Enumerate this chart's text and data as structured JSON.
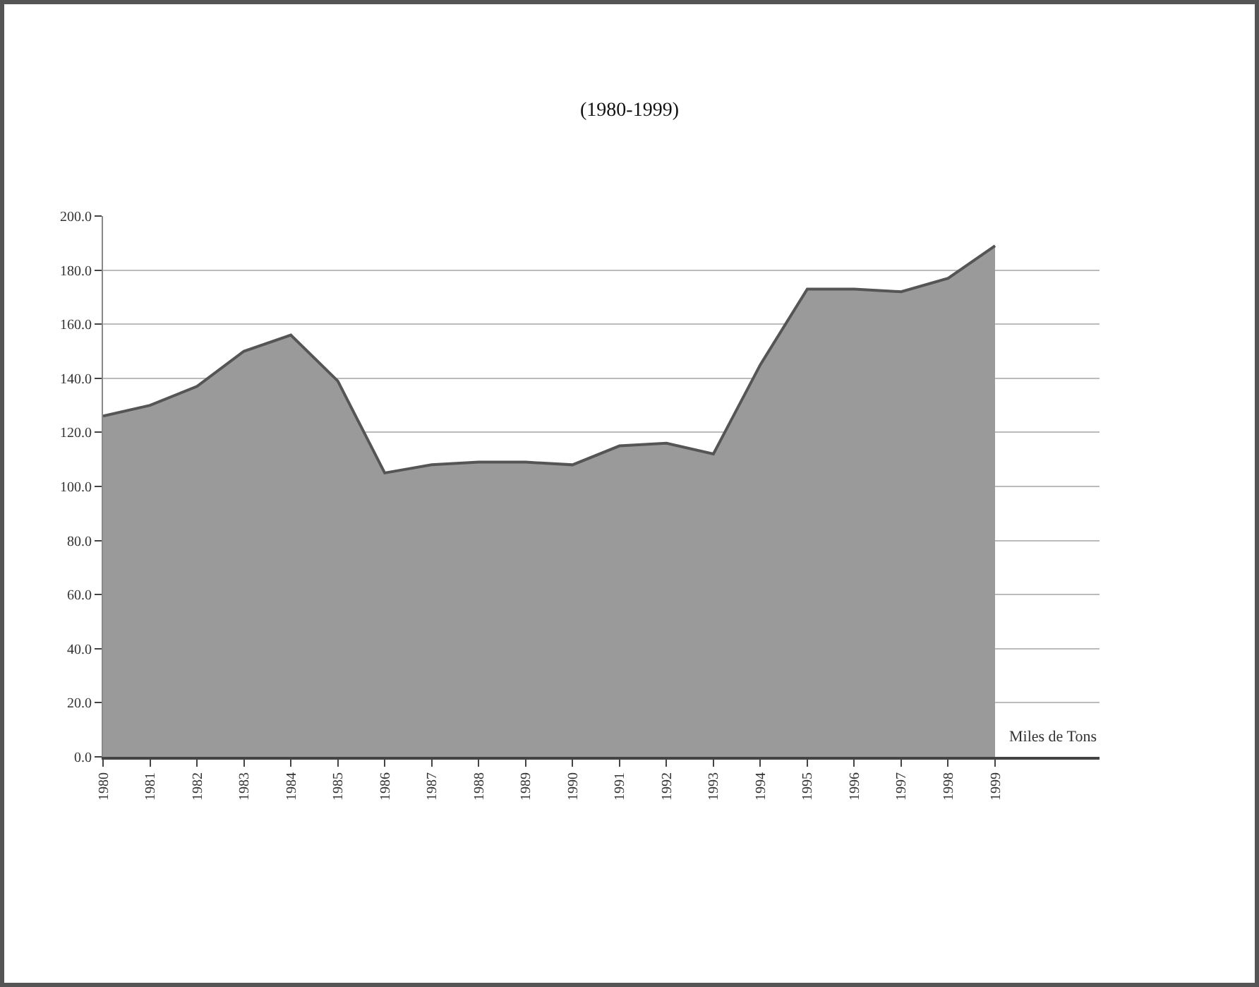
{
  "chart_data": {
    "type": "area",
    "title": "(1980-1999)",
    "categories": [
      "1980",
      "1981",
      "1982",
      "1983",
      "1984",
      "1985",
      "1986",
      "1987",
      "1988",
      "1989",
      "1990",
      "1991",
      "1992",
      "1993",
      "1994",
      "1995",
      "1996",
      "1997",
      "1998",
      "1999"
    ],
    "series": [
      {
        "name": "Miles de Tons",
        "color": "#9a9a9a",
        "values": [
          126,
          130,
          137,
          150,
          156,
          139,
          105,
          108,
          109,
          109,
          108,
          115,
          116,
          112,
          145,
          173,
          173,
          172,
          177,
          189
        ]
      }
    ],
    "ylim": [
      0,
      200
    ],
    "yticks": [
      {
        "value": 0,
        "label": "0.0"
      },
      {
        "value": 20,
        "label": "20.0"
      },
      {
        "value": 40,
        "label": "40.0"
      },
      {
        "value": 60,
        "label": "60.0"
      },
      {
        "value": 80,
        "label": "80.0"
      },
      {
        "value": 100,
        "label": "100.0"
      },
      {
        "value": 120,
        "label": "120.0"
      },
      {
        "value": 140,
        "label": "140.0"
      },
      {
        "value": 160,
        "label": "160.0"
      },
      {
        "value": 180,
        "label": "180.0"
      },
      {
        "value": 200,
        "label": "200.0"
      }
    ],
    "grid": "y",
    "legend": false
  }
}
